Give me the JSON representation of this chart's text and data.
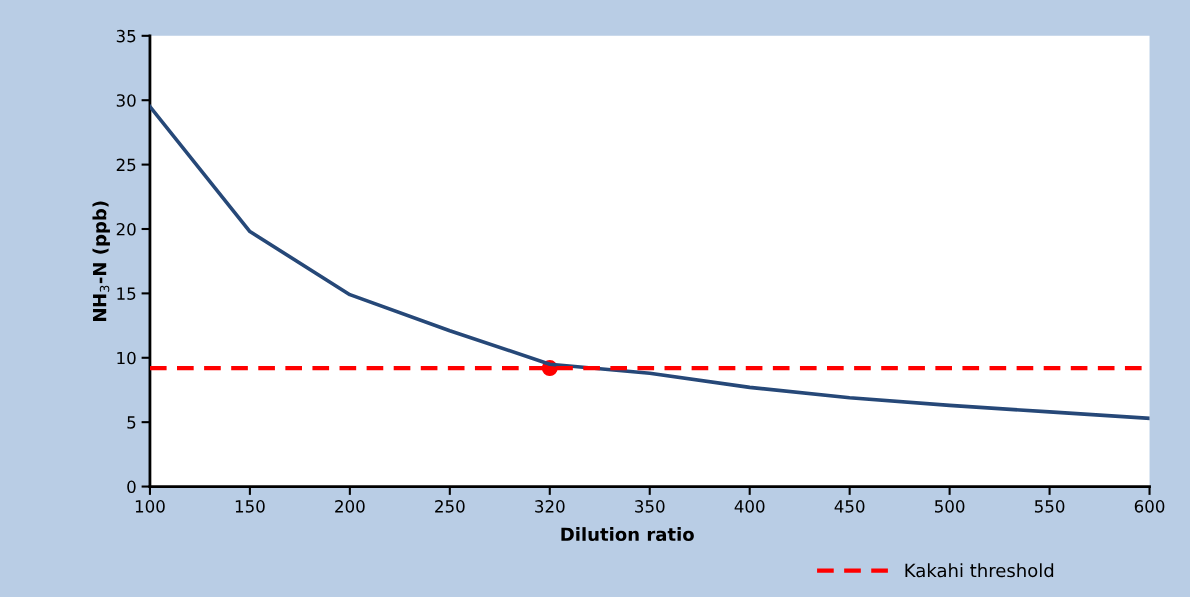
{
  "chart_data": {
    "type": "line",
    "xlabel": "Dilution ratio",
    "ylabel": "NH$_{3}$-N (ppb)",
    "categories": [
      "100",
      "150",
      "200",
      "250",
      "320",
      "350",
      "400",
      "450",
      "500",
      "550",
      "600"
    ],
    "series": [
      {
        "color": "#264878",
        "values": [
          29.5,
          19.8,
          14.9,
          12.1,
          9.5,
          8.8,
          7.7,
          6.9,
          6.3,
          5.8,
          5.3
        ]
      },
      {
        "type": "scatter",
        "color": "#ff0000",
        "x": [
          "320"
        ],
        "values": [
          9.2
        ],
        "marker": "circle"
      }
    ],
    "ref_lines": [
      {
        "axis": "y",
        "value": 9.2,
        "label": "Kakahi threshold",
        "color": "#ff0000",
        "line_style": "dashed"
      }
    ],
    "ylim": [
      0,
      35
    ],
    "yticks": [
      0,
      5,
      10,
      15,
      20,
      25,
      30,
      35
    ],
    "grid": false,
    "legend": "bottom right",
    "marker": "none",
    "line_style": "solid"
  }
}
